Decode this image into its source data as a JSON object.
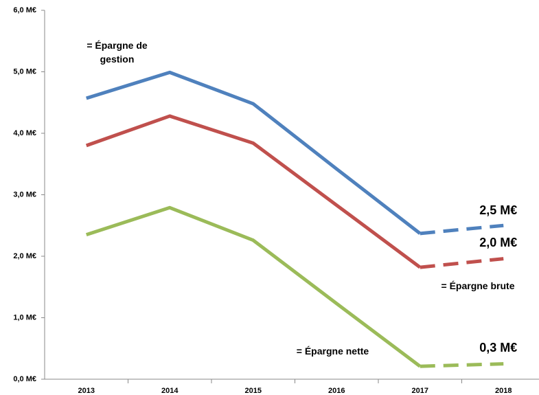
{
  "chart_data": {
    "type": "line",
    "categories": [
      "2013",
      "2014",
      "2015",
      "2016",
      "2017",
      "2018"
    ],
    "dashed_from": "2017",
    "series": [
      {
        "name": "= Épargne de gestion",
        "color": "#4f81bd",
        "values": [
          4.57,
          4.99,
          4.48,
          3.42,
          2.37,
          2.5
        ],
        "value_labels": [
          null,
          null,
          null,
          null,
          null,
          "2,5 M€"
        ]
      },
      {
        "name": "= Épargne brute",
        "color": "#c0504d",
        "values": [
          3.8,
          4.28,
          3.84,
          2.83,
          1.82,
          1.96
        ],
        "value_labels": [
          null,
          null,
          null,
          null,
          null,
          "2,0 M€"
        ]
      },
      {
        "name": "= Épargne nette",
        "color": "#9bbb59",
        "values": [
          2.35,
          2.79,
          2.26,
          1.23,
          0.21,
          0.25
        ],
        "value_labels": [
          null,
          null,
          null,
          null,
          null,
          "0,3 M€"
        ]
      }
    ],
    "ylim": [
      0,
      6
    ],
    "yticks": [
      {
        "value": 0,
        "label": "0,0 M€"
      },
      {
        "value": 1,
        "label": "1,0 M€"
      },
      {
        "value": 2,
        "label": "2,0 M€"
      },
      {
        "value": 3,
        "label": "3,0 M€"
      },
      {
        "value": 4,
        "label": "4,0 M€"
      },
      {
        "value": 5,
        "label": "5,0 M€"
      },
      {
        "value": 6,
        "label": "6,0 M€"
      }
    ]
  }
}
